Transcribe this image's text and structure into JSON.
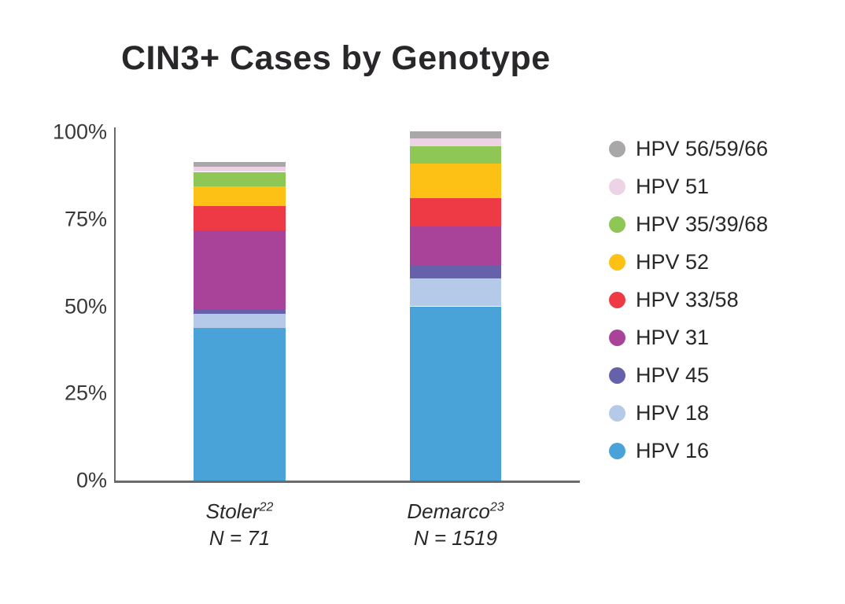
{
  "page": {
    "background": "#ffffff",
    "text_color": "#29272a",
    "axis_color": "#6b6b6b",
    "tick_label_color": "#3b383b"
  },
  "chart_data": {
    "type": "bar",
    "stacked": true,
    "title": "CIN3+ Cases by Genotype",
    "categories": [
      "Stoler",
      "Demarco"
    ],
    "category_refs": [
      "22",
      "23"
    ],
    "category_counts": [
      "N = 71",
      "N = 1519"
    ],
    "xlabel": "",
    "ylabel": "",
    "ylim": [
      0,
      100
    ],
    "yticks": [
      0,
      25,
      50,
      75,
      100
    ],
    "ytick_labels": [
      "0%",
      "25%",
      "50%",
      "75%",
      "100%"
    ],
    "grid": false,
    "legend_position": "right",
    "legend_order": "reverse-of-stack",
    "series": [
      {
        "name": "HPV 16",
        "color": "#49a3d8",
        "values": [
          43.7,
          50.0
        ]
      },
      {
        "name": "HPV 18",
        "color": "#b5c9e9",
        "values": [
          4.2,
          8.1
        ]
      },
      {
        "name": "HPV 45",
        "color": "#6760ab",
        "values": [
          1.4,
          3.8
        ]
      },
      {
        "name": "HPV 31",
        "color": "#a84399",
        "values": [
          22.5,
          11.0
        ]
      },
      {
        "name": "HPV 33/58",
        "color": "#ee3a45",
        "values": [
          7.0,
          8.2
        ]
      },
      {
        "name": "HPV 52",
        "color": "#fcc114",
        "values": [
          5.6,
          9.9
        ]
      },
      {
        "name": "HPV 35/39/68",
        "color": "#8ec755",
        "values": [
          4.2,
          5.0
        ]
      },
      {
        "name": "HPV 51",
        "color": "#ecd4e6",
        "values": [
          1.4,
          2.2
        ]
      },
      {
        "name": "HPV 56/59/66",
        "color": "#a9a7a8",
        "values": [
          1.4,
          2.0
        ]
      }
    ]
  }
}
